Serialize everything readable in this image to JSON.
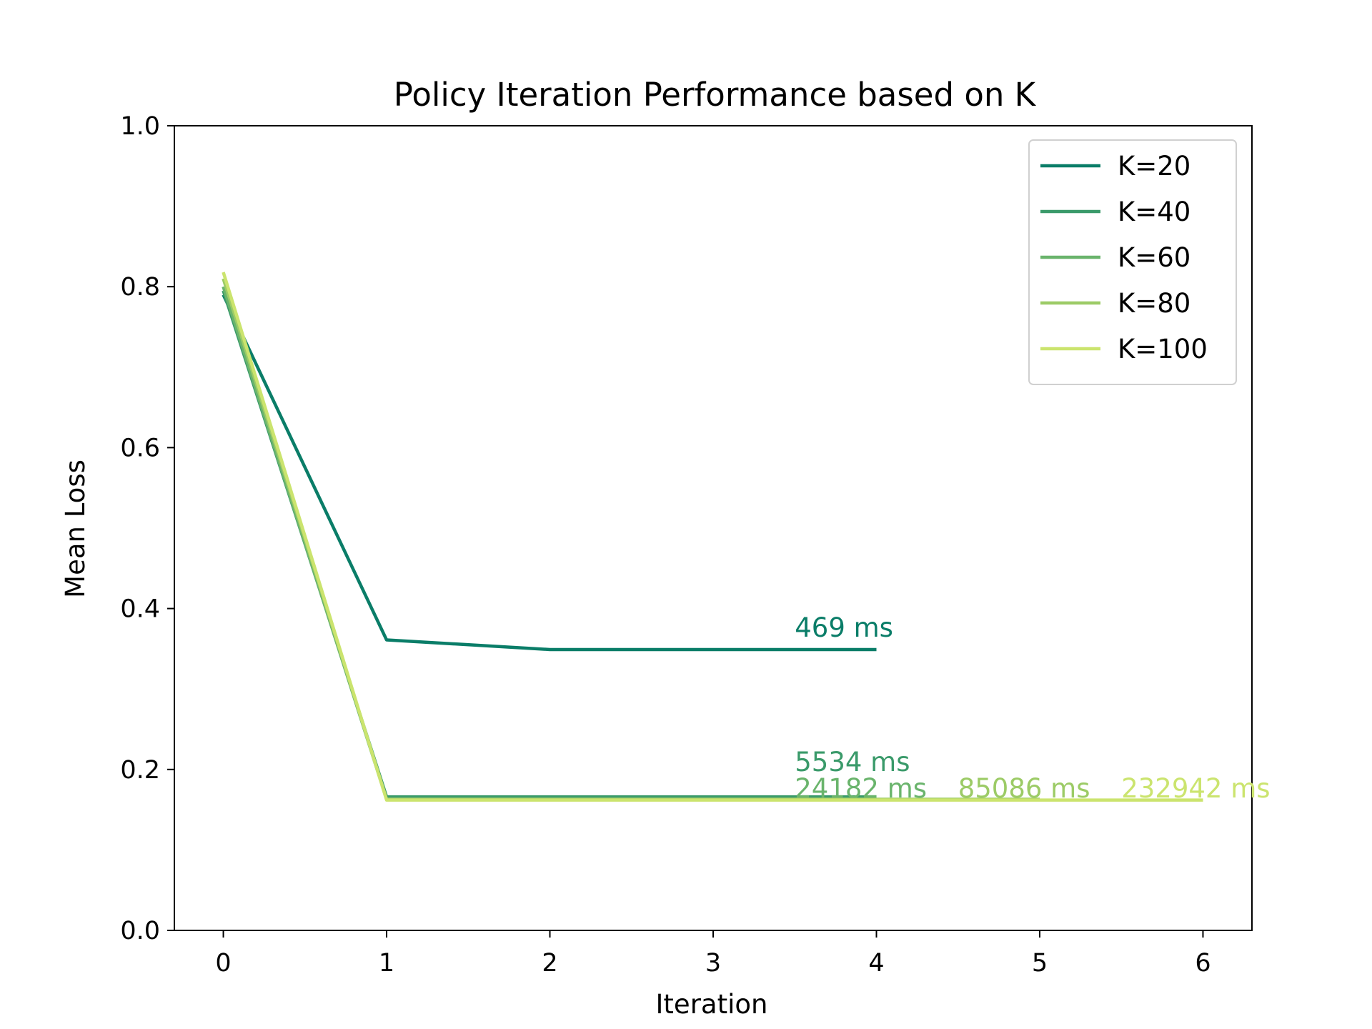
{
  "chart_data": {
    "type": "line",
    "title": "Policy Iteration Performance based on K",
    "xlabel": "Iteration",
    "ylabel": "Mean Loss",
    "xlim": [
      -0.3,
      6.3
    ],
    "ylim": [
      0.0,
      1.0
    ],
    "xticks": [
      0,
      1,
      2,
      3,
      4,
      5,
      6
    ],
    "yticks": [
      0.0,
      0.2,
      0.4,
      0.6,
      0.8,
      1.0
    ],
    "xtick_labels": [
      "0",
      "1",
      "2",
      "3",
      "4",
      "5",
      "6"
    ],
    "ytick_labels": [
      "0.0",
      "0.2",
      "0.4",
      "0.6",
      "0.8",
      "1.0"
    ],
    "grid": false,
    "legend_position": "upper right",
    "series": [
      {
        "name": "K=20",
        "color": "#0a7d68",
        "x": [
          0,
          1,
          2,
          3,
          4
        ],
        "y": [
          0.79,
          0.361,
          0.349,
          0.349,
          0.349
        ]
      },
      {
        "name": "K=40",
        "color": "#3a9a6a",
        "x": [
          0,
          1,
          2,
          3,
          4
        ],
        "y": [
          0.795,
          0.166,
          0.166,
          0.166,
          0.166
        ]
      },
      {
        "name": "K=60",
        "color": "#6ab46c",
        "x": [
          0,
          1,
          2,
          3,
          4
        ],
        "y": [
          0.8,
          0.163,
          0.163,
          0.163,
          0.163
        ]
      },
      {
        "name": "K=80",
        "color": "#9ccb66",
        "x": [
          0,
          1,
          2,
          3,
          4,
          5
        ],
        "y": [
          0.81,
          0.163,
          0.163,
          0.163,
          0.163,
          0.163
        ]
      },
      {
        "name": "K=100",
        "color": "#cbe46e",
        "x": [
          0,
          1,
          2,
          3,
          4,
          5,
          6
        ],
        "y": [
          0.818,
          0.162,
          0.162,
          0.162,
          0.162,
          0.162,
          0.162
        ]
      }
    ],
    "annotations": [
      {
        "text": "469 ms",
        "x": 3.5,
        "y": 0.365,
        "color": "#0a7d68"
      },
      {
        "text": "5534 ms",
        "x": 3.5,
        "y": 0.198,
        "color": "#3a9a6a"
      },
      {
        "text": "24182 ms",
        "x": 3.5,
        "y": 0.165,
        "color": "#6ab46c"
      },
      {
        "text": "85086 ms",
        "x": 4.5,
        "y": 0.165,
        "color": "#9ccb66"
      },
      {
        "text": "232942 ms",
        "x": 5.5,
        "y": 0.165,
        "color": "#cbe46e"
      }
    ]
  }
}
